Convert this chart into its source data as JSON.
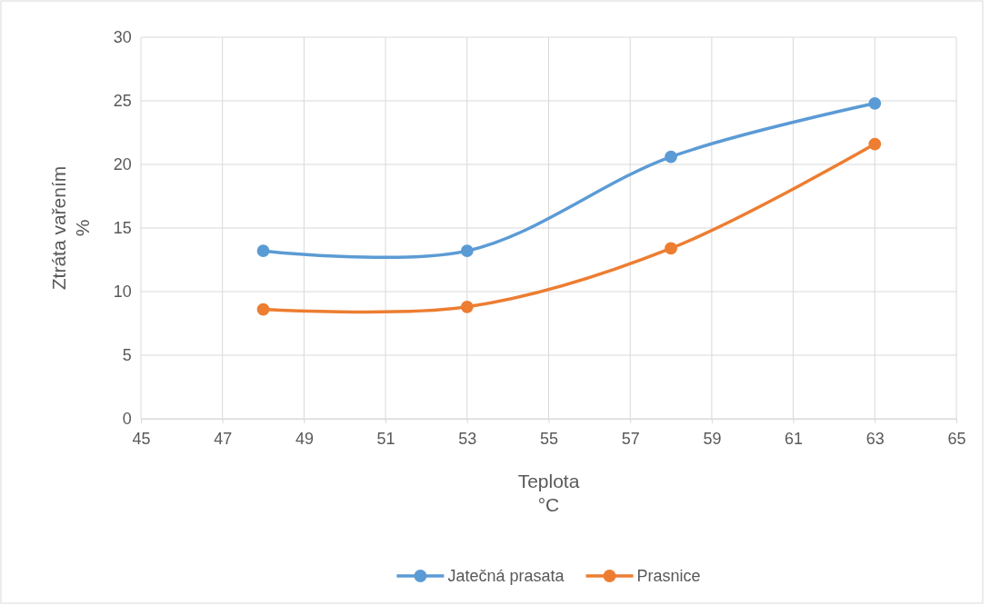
{
  "chart_data": {
    "type": "line",
    "xlabel": "Teplota\n°C",
    "ylabel": "Ztráta vařením\n%",
    "x": [
      48,
      53,
      58,
      63
    ],
    "series": [
      {
        "name": "Jatečná prasata",
        "color": "#5b9bd5",
        "values": [
          13.2,
          13.2,
          20.6,
          24.8
        ]
      },
      {
        "name": "Prasnice",
        "color": "#ed7d31",
        "values": [
          8.6,
          8.8,
          13.4,
          21.6
        ]
      }
    ],
    "xlim": [
      45,
      65
    ],
    "xticks": [
      45,
      47,
      49,
      51,
      53,
      55,
      57,
      59,
      61,
      63,
      65
    ],
    "ylim": [
      0,
      30
    ],
    "yticks": [
      0,
      5,
      10,
      15,
      20,
      25,
      30
    ],
    "grid": true,
    "legend": "bottom",
    "marker": "circle",
    "line_style": "solid"
  }
}
